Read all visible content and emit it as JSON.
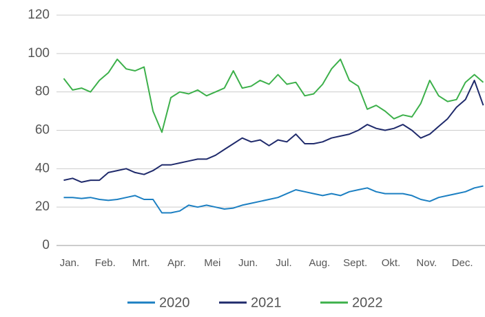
{
  "chart_data": {
    "type": "line",
    "categories": [
      null,
      "Jan.",
      null,
      null,
      null,
      "Feb.",
      null,
      null,
      null,
      "Mrt.",
      null,
      null,
      null,
      "Apr.",
      null,
      null,
      null,
      "Mei",
      null,
      null,
      null,
      "Jun.",
      null,
      null,
      null,
      "Jul.",
      null,
      null,
      null,
      "Aug.",
      null,
      null,
      null,
      "Sept.",
      null,
      null,
      null,
      "Okt.",
      null,
      null,
      null,
      "Nov.",
      null,
      null,
      null,
      "Dec.",
      null,
      null
    ],
    "series": [
      {
        "name": "2020",
        "color": "#1b7fc2",
        "values": [
          25,
          25,
          24.5,
          25,
          24,
          23.5,
          24,
          25,
          26,
          24,
          24,
          17,
          17,
          18,
          21,
          20,
          21,
          20,
          19,
          19.5,
          21,
          22,
          23,
          24,
          25,
          27,
          29,
          28,
          27,
          26,
          27,
          26,
          28,
          29,
          30,
          28,
          27,
          27,
          27,
          26,
          24,
          23,
          25,
          26,
          27,
          28,
          30,
          31
        ]
      },
      {
        "name": "2021",
        "color": "#1f2a6b",
        "values": [
          34,
          35,
          33,
          34,
          34,
          38,
          39,
          40,
          38,
          37,
          39,
          42,
          42,
          43,
          44,
          45,
          45,
          47,
          50,
          53,
          56,
          54,
          55,
          52,
          55,
          54,
          58,
          53,
          53,
          54,
          56,
          57,
          58,
          60,
          63,
          61,
          60,
          61,
          63,
          60,
          56,
          58,
          62,
          66,
          72,
          76,
          86,
          73
        ]
      },
      {
        "name": "2022",
        "color": "#3cb04a",
        "values": [
          87,
          81,
          82,
          80,
          86,
          90,
          97,
          92,
          91,
          93,
          70,
          59,
          77,
          80,
          79,
          81,
          78,
          80,
          82,
          91,
          82,
          83,
          86,
          84,
          89,
          84,
          85,
          78,
          79,
          84,
          92,
          97,
          86,
          83,
          71,
          73,
          70,
          66,
          68,
          67,
          74,
          86,
          78,
          75,
          76,
          85,
          89,
          85
        ]
      }
    ],
    "ylim": [
      0,
      120
    ],
    "yticks": [
      0,
      20,
      40,
      60,
      80,
      100,
      120
    ],
    "grid": true,
    "legend": "bottom"
  }
}
